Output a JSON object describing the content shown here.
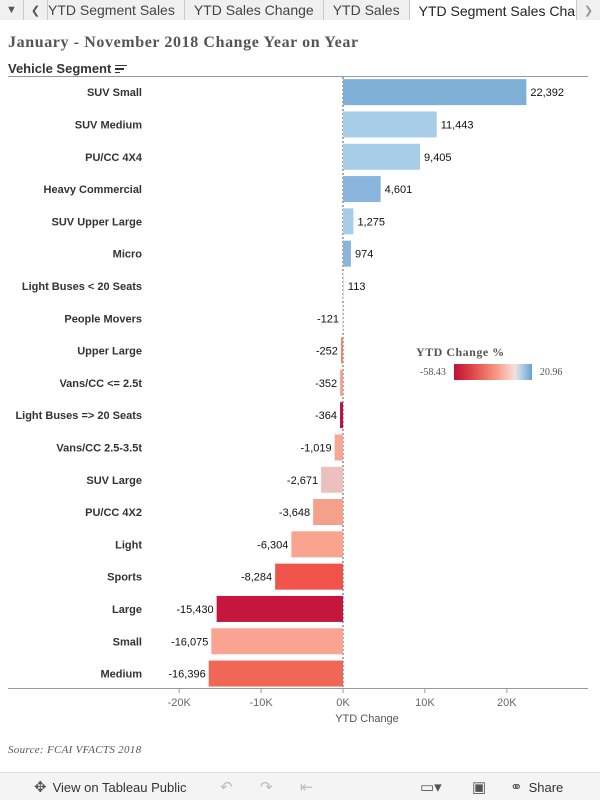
{
  "tabs": {
    "items": [
      "YTD Segment Sales",
      "YTD Sales Change",
      "YTD Sales",
      "YTD Segment Sales Change"
    ],
    "active_index": 3
  },
  "title": "January - November 2018 Change Year on Year",
  "segment_header": "Vehicle Segment",
  "legend": {
    "title": "YTD Change %",
    "min": "-58.43",
    "max": "20.96"
  },
  "source": "Source: FCAI VFACTS 2018",
  "toolbar": {
    "view_label": "View on Tableau Public",
    "share_label": "Share"
  },
  "chart_data": {
    "type": "bar",
    "orientation": "horizontal",
    "categories": [
      "SUV Small",
      "SUV Medium",
      "PU/CC 4X4",
      "Heavy Commercial",
      "SUV Upper Large",
      "Micro",
      "Light Buses < 20 Seats",
      "People Movers",
      "Upper Large",
      "Vans/CC <= 2.5t",
      "Light Buses => 20 Seats",
      "Vans/CC 2.5-3.5t",
      "SUV Large",
      "PU/CC 4X2",
      "Light",
      "Sports",
      "Large",
      "Small",
      "Medium"
    ],
    "values": [
      22392,
      11443,
      9405,
      4601,
      1275,
      974,
      113,
      -121,
      -252,
      -352,
      -364,
      -1019,
      -2671,
      -3648,
      -6304,
      -8284,
      -15430,
      -16075,
      -16396
    ],
    "value_labels": [
      "22,392",
      "11,443",
      "9,405",
      "4,601",
      "1,275",
      "974",
      "113",
      "-121",
      "-252",
      "-352",
      "-364",
      "-1,019",
      "-2,671",
      "-3,648",
      "-6,304",
      "-8,284",
      "-15,430",
      "-16,075",
      "-16,396"
    ],
    "colors": [
      "#7eafd6",
      "#a8cde8",
      "#a8cde8",
      "#8ab6de",
      "#a8cde8",
      "#8ab6de",
      "#c9e0f0",
      "#f2d9d6",
      "#f3866e",
      "#f4a090",
      "#c1103a",
      "#f7a696",
      "#ecc0bc",
      "#f4a08b",
      "#f9a48f",
      "#ef5349",
      "#c5173d",
      "#faa393",
      "#f06855"
    ],
    "xlabel": "YTD Change",
    "xlim": [
      -20000,
      25000
    ],
    "ticks": [
      -20000,
      -10000,
      0,
      10000,
      20000
    ],
    "tick_labels": [
      "-20K",
      "-10K",
      "0K",
      "10K",
      "20K"
    ]
  }
}
